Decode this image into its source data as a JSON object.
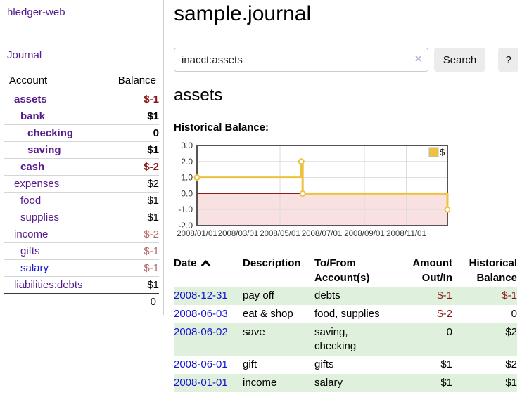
{
  "app": {
    "title": "hledger-web"
  },
  "sidebar": {
    "journal_label": "Journal",
    "accounts": {
      "headers": [
        "Account",
        "Balance"
      ],
      "rows": [
        {
          "account": "assets",
          "balance": "$-1",
          "depth": 1,
          "bold": true,
          "balance_tone": "neg-strong",
          "link_tone": "visited"
        },
        {
          "account": "bank",
          "balance": "$1",
          "depth": 2,
          "bold": true,
          "balance_tone": "normal",
          "link_tone": "visited"
        },
        {
          "account": "checking",
          "balance": "0",
          "depth": 3,
          "bold": true,
          "balance_tone": "normal",
          "link_tone": "visited"
        },
        {
          "account": "saving",
          "balance": "$1",
          "depth": 3,
          "bold": true,
          "balance_tone": "normal",
          "link_tone": "visited"
        },
        {
          "account": "cash",
          "balance": "$-2",
          "depth": 2,
          "bold": true,
          "balance_tone": "neg-strong",
          "link_tone": "visited"
        },
        {
          "account": "expenses",
          "balance": "$2",
          "depth": 1,
          "bold": false,
          "balance_tone": "normal",
          "link_tone": "visited"
        },
        {
          "account": "food",
          "balance": "$1",
          "depth": 2,
          "bold": false,
          "balance_tone": "normal",
          "link_tone": "visited"
        },
        {
          "account": "supplies",
          "balance": "$1",
          "depth": 2,
          "bold": false,
          "balance_tone": "normal",
          "link_tone": "visited"
        },
        {
          "account": "income",
          "balance": "$-2",
          "depth": 1,
          "bold": false,
          "balance_tone": "neg-soft",
          "link_tone": "visited"
        },
        {
          "account": "gifts",
          "balance": "$-1",
          "depth": 2,
          "bold": false,
          "balance_tone": "neg-soft",
          "link_tone": "visited"
        },
        {
          "account": "salary",
          "balance": "$-1",
          "depth": 2,
          "bold": false,
          "balance_tone": "neg-soft",
          "link_tone": "unvisited"
        },
        {
          "account": "liabilities:debts",
          "balance": "$1",
          "depth": 1,
          "bold": false,
          "balance_tone": "normal",
          "link_tone": "visited"
        }
      ],
      "total": "0"
    }
  },
  "main": {
    "title": "sample.journal",
    "search": {
      "value": "inacct:assets",
      "clear_icon": "×",
      "button_label": "Search",
      "help_label": "?"
    },
    "account_heading": "assets",
    "chart_label": "Historical Balance:"
  },
  "chart_data": {
    "type": "line",
    "title": "Historical Balance",
    "step": true,
    "x_range": [
      "2008/01/01",
      "2008/12/31"
    ],
    "ylim": [
      -2,
      3
    ],
    "y_ticks": [
      "3.0",
      "2.0",
      "1.0",
      "0.0",
      "-1.0",
      "-2.0"
    ],
    "x_ticks": [
      "2008/01/01",
      "2008/03/01",
      "2008/05/01",
      "2008/07/01",
      "2008/09/01",
      "2008/11/01"
    ],
    "series": [
      {
        "name": "$",
        "color": "#edc240",
        "points": [
          [
            "2008/01/01",
            1
          ],
          [
            "2008/06/01",
            2
          ],
          [
            "2008/06/03",
            0
          ],
          [
            "2008/12/31",
            -1
          ]
        ]
      }
    ],
    "legend": {
      "label": "$",
      "position": "top-right"
    },
    "grid": true,
    "grid_color": "#dcdcdc",
    "border_color": "#545454",
    "negative_region_fill": "#fae1e1",
    "zero_line_color": "#8b1a1a"
  },
  "register": {
    "headers": [
      "Date",
      "Description",
      "To/From Account(s)",
      "Amount Out/In",
      "Historical Balance"
    ],
    "sort_icon": "chevron-up",
    "rows": [
      {
        "date": "2008-12-31",
        "description": "pay off",
        "accounts": "debts",
        "amount": "$-1",
        "balance": "$-1"
      },
      {
        "date": "2008-06-03",
        "description": "eat & shop",
        "accounts": "food, supplies",
        "amount": "$-2",
        "balance": "0"
      },
      {
        "date": "2008-06-02",
        "description": "save",
        "accounts": "saving, checking",
        "amount": "0",
        "balance": "$2"
      },
      {
        "date": "2008-06-01",
        "description": "gift",
        "accounts": "gifts",
        "amount": "$1",
        "balance": "$2"
      },
      {
        "date": "2008-01-01",
        "description": "income",
        "accounts": "salary",
        "amount": "$1",
        "balance": "$1"
      }
    ]
  },
  "colors": {
    "link_purple": "#551a8b",
    "link_blue": "#1414d2",
    "negative_strong": "#8b1a1a",
    "negative_soft": "#b36a6a",
    "row_stripe_green": "#dff0dc",
    "accent_gold": "#edc240",
    "chart_negative_fill": "#fae1e1"
  }
}
